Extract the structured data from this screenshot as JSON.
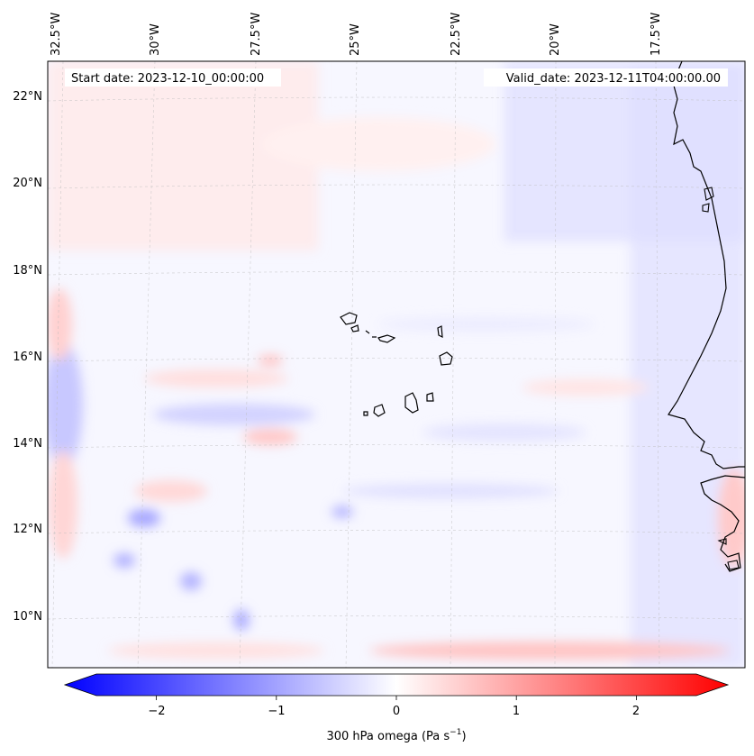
{
  "header": {
    "start_date": "Start date: 2023-12-10_00:00:00",
    "valid_date": "Valid_date: 2023-12-11T04:00:00.00"
  },
  "map": {
    "longitude_labels": [
      "32.5°W",
      "30°W",
      "27.5°W",
      "25°W",
      "22.5°W",
      "20°W",
      "17.5°W"
    ],
    "latitude_labels": [
      "22°N",
      "20°N",
      "18°N",
      "16°N",
      "14°N",
      "12°N",
      "10°N"
    ],
    "gridlines": "on",
    "colormap": "bwr",
    "colors": {
      "negative": "#0000ff",
      "zero": "#ffffff",
      "positive": "#ff0000",
      "coastline": "#000000"
    }
  },
  "colorbar": {
    "label_main": "300 hPa omega (Pa s",
    "label_exp": "−1",
    "label_close": ")",
    "ticks": [
      "−2",
      "−1",
      "0",
      "1",
      "2"
    ],
    "tick_values": [
      -2,
      -1,
      0,
      1,
      2
    ],
    "range": [
      -2.75,
      2.75
    ],
    "extend": "both"
  }
}
